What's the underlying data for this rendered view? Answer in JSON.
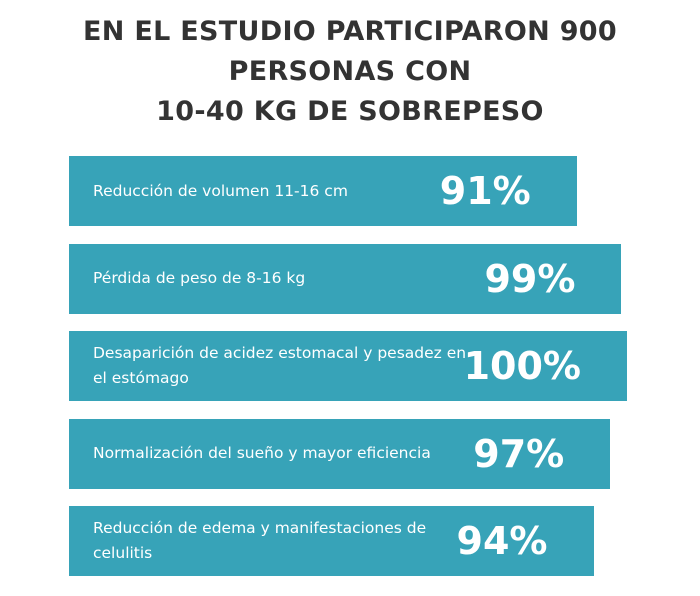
{
  "chart_data": {
    "type": "bar",
    "orientation": "horizontal",
    "title": "EN EL ESTUDIO PARTICIPARON 900\nPERSONAS CON\n10-40 KG DE SOBREPESO",
    "categories": [
      "Reducción de volumen 11-16 cm",
      "Pérdida de peso de 8-16 kg",
      "Desaparición de acidez estomacal y pesadez en el estómago",
      "Normalización del sueño y mayor eficiencia",
      "Reducción de edema y manifestaciones de celulitis"
    ],
    "values": [
      91,
      99,
      100,
      97,
      94
    ],
    "value_labels": [
      "91%",
      "99%",
      "100%",
      "97%",
      "94%"
    ],
    "color": "#37a3b8",
    "xlim": [
      0,
      100
    ]
  }
}
